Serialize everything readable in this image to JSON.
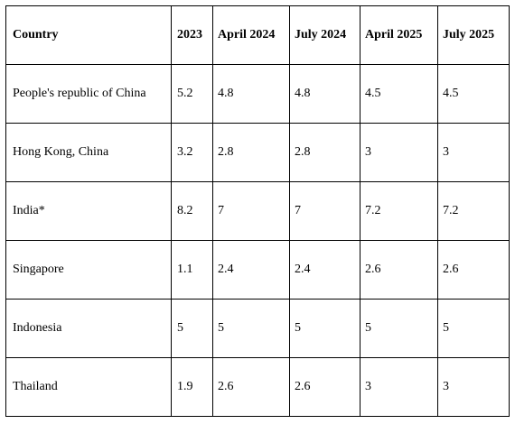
{
  "table": {
    "headers": [
      "Country",
      "2023",
      "April 2024",
      "July 2024",
      "April 2025",
      "July 2025"
    ],
    "rows": [
      [
        "People's republic of China",
        "5.2",
        "4.8",
        "4.8",
        "4.5",
        "4.5"
      ],
      [
        "Hong Kong, China",
        "3.2",
        "2.8",
        "2.8",
        "3",
        "3"
      ],
      [
        "India*",
        "8.2",
        "7",
        "7",
        "7.2",
        "7.2"
      ],
      [
        "Singapore",
        "1.1",
        "2.4",
        "2.4",
        "2.6",
        "2.6"
      ],
      [
        "Indonesia",
        "5",
        "5",
        "5",
        "5",
        "5"
      ],
      [
        "Thailand",
        "1.9",
        "2.6",
        "2.6",
        "3",
        "3"
      ]
    ]
  }
}
